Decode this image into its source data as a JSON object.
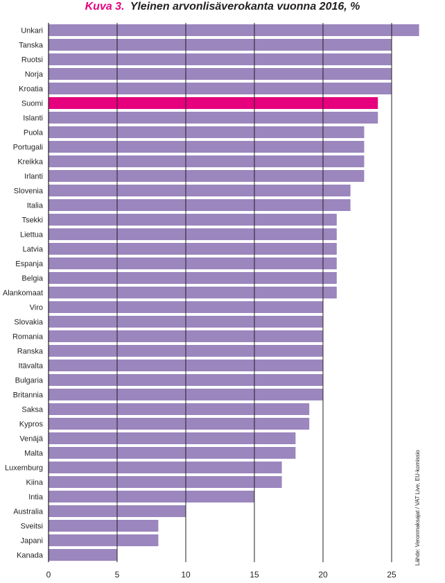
{
  "title": {
    "prefix": "Kuva 3.",
    "text": "Yleinen arvonlisäverokanta vuonna 2016, %"
  },
  "source": "Lähde: Veronmaksajat / VAT Live, EU-komissio",
  "colors": {
    "bar": "#9b86be",
    "highlight": "#e6007e",
    "grid": "#231f20",
    "text": "#231f20"
  },
  "chart_data": {
    "type": "bar",
    "orientation": "horizontal",
    "title": "Yleinen arvonlisäverokanta vuonna 2016, %",
    "xlabel": "",
    "ylabel": "",
    "xlim": [
      0,
      27
    ],
    "xticks": [
      0,
      5,
      10,
      15,
      20,
      25
    ],
    "grid": true,
    "highlight": "Suomi",
    "categories": [
      "Unkari",
      "Tanska",
      "Ruotsi",
      "Norja",
      "Kroatia",
      "Suomi",
      "Islanti",
      "Puola",
      "Portugali",
      "Kreikka",
      "Irlanti",
      "Slovenia",
      "Italia",
      "Tsekki",
      "Liettua",
      "Latvia",
      "Espanja",
      "Belgia",
      "Alankomaat",
      "Viro",
      "Slovakia",
      "Romania",
      "Ranska",
      "Itävalta",
      "Bulgaria",
      "Britannia",
      "Saksa",
      "Kypros",
      "Venäjä",
      "Malta",
      "Luxemburg",
      "Kiina",
      "Intia",
      "Australia",
      "Sveitsi",
      "Japani",
      "Kanada"
    ],
    "values": [
      27,
      25,
      25,
      25,
      25,
      24,
      24,
      23,
      23,
      23,
      23,
      22,
      22,
      21,
      21,
      21,
      21,
      21,
      21,
      20,
      20,
      20,
      20,
      20,
      20,
      20,
      19,
      19,
      18,
      18,
      17,
      17,
      15,
      10,
      8,
      8,
      5
    ]
  }
}
